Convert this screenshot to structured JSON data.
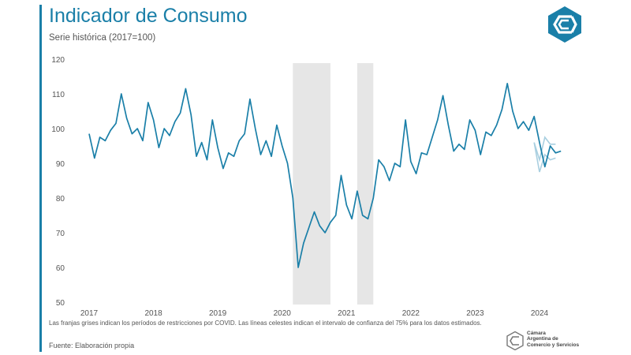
{
  "header": {
    "title": "Indicador de Consumo",
    "subtitle": "Serie histórica (2017=100)"
  },
  "footer": {
    "note": "Las franjas grises indican los períodos de restricciones por COVID. Las líneas celestes indican el intervalo de confianza del 75% para los datos estimados.",
    "source": "Fuente: Elaboración propia",
    "org_lines": [
      "Cámara",
      "Argentina de",
      "Comercio y Servicios"
    ]
  },
  "colors": {
    "line": "#1a7fa8",
    "band": "#e6e6e6",
    "ci": "#a9cfe0",
    "text": "#555555"
  },
  "chart_data": {
    "type": "line",
    "title": "Indicador de Consumo",
    "subtitle": "Serie histórica (2017=100)",
    "xlabel": "",
    "ylabel": "",
    "ylim": [
      50,
      120
    ],
    "yticks": [
      50,
      60,
      70,
      80,
      90,
      100,
      110,
      120
    ],
    "xticks": [
      "2017",
      "2018",
      "2019",
      "2020",
      "2021",
      "2022",
      "2023",
      "2024"
    ],
    "grid": false,
    "start": "2017-01",
    "series": [
      {
        "values": [
          98.5,
          91.5,
          97.5,
          96.5,
          99.5,
          101.5,
          110,
          103,
          98.5,
          100,
          96.5,
          107.5,
          102.5,
          94.5,
          100,
          98,
          102,
          104.5,
          111.5,
          104,
          92,
          96,
          91,
          102.5,
          94.5,
          88.5,
          93,
          92,
          96.5,
          98.5,
          108.5,
          100,
          92.5,
          96.5,
          92,
          101,
          95,
          90,
          80,
          60,
          67,
          71.5,
          76,
          72,
          70,
          73,
          75,
          86.5,
          78,
          74,
          82,
          75,
          74,
          80,
          91,
          89,
          85,
          90,
          89,
          102.5,
          90.5,
          87,
          93,
          92.5,
          97.5,
          102.5,
          109.5,
          101,
          93.5,
          95.5,
          94,
          102.5,
          99.5,
          92.5,
          99,
          98,
          101,
          105.5,
          113,
          105,
          100,
          102,
          99.5,
          103.5,
          96,
          89,
          95,
          93,
          93.5
        ]
      }
    ],
    "ci_lower": [
      [
        2023.917,
        96
      ],
      [
        2024.0,
        87.5
      ],
      [
        2024.083,
        92.5
      ],
      [
        2024.167,
        91
      ],
      [
        2024.25,
        91.5
      ]
    ],
    "ci_upper": [
      [
        2023.917,
        96
      ],
      [
        2024.0,
        91
      ],
      [
        2024.083,
        97.5
      ],
      [
        2024.167,
        95.5
      ],
      [
        2024.25,
        95.5
      ]
    ],
    "covid_bands": [
      [
        2020.167,
        2020.75
      ],
      [
        2021.167,
        2021.417
      ]
    ]
  }
}
